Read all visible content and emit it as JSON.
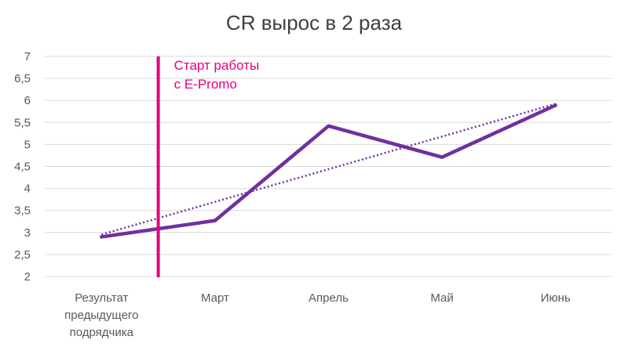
{
  "chart_data": {
    "type": "line",
    "title": "CR вырос в 2 раза",
    "xlabel": "",
    "ylabel": "",
    "categories": [
      [
        "Результат",
        "предыдущего",
        "подрядчика"
      ],
      [
        "Март"
      ],
      [
        "Апрель"
      ],
      [
        "Май"
      ],
      [
        "Июнь"
      ]
    ],
    "series": [
      {
        "values": [
          2.9,
          3.27,
          5.42,
          4.71,
          5.89
        ],
        "color": "#7030a0"
      }
    ],
    "trendline": {
      "kind": "linear",
      "style": "dotted",
      "color": "#7030a0"
    },
    "ylim": [
      2,
      7
    ],
    "yticks": [
      "2",
      "2,5",
      "3",
      "3,5",
      "4",
      "4,5",
      "5",
      "5,5",
      "6",
      "6,5",
      "7"
    ],
    "grid": true,
    "legend": "none",
    "marker_line": {
      "position_x": 0.5,
      "color": "#e6007e"
    },
    "annotation": [
      "Старт работы",
      "с E-Promo"
    ]
  }
}
